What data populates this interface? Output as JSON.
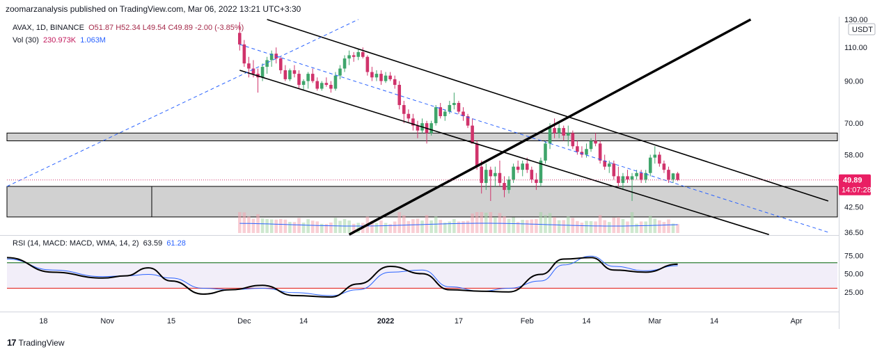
{
  "header": {
    "text": "zoomarzanalysis published on TradingView.com, Mar 06, 2022 13:21 UTC+3:30"
  },
  "legend": {
    "symbol": "AVAX",
    "interval": "1D",
    "exchange": "BINANCE",
    "open": "O51.87",
    "high": "H52.34",
    "low": "L49.54",
    "close": "C49.89",
    "change": "-2.00 (-3.85%)",
    "volume_label": "Vol (30)",
    "volume_value": "230.973K",
    "volume_ma": "1.063M",
    "rsi_label": "RSI (14, MACD: MACD, WMA, 14, 2)",
    "rsi_value": "63.59",
    "rsi_ma": "61.28"
  },
  "price_axis": {
    "currency": "USDT",
    "ticks": [
      "130.00",
      "110.00",
      "90.00",
      "70.00",
      "58.00",
      "42.50",
      "36.50"
    ],
    "last_price": "49.89",
    "countdown": "14:07:28"
  },
  "rsi_axis": {
    "ticks": [
      "75.00",
      "50.00",
      "25.00"
    ]
  },
  "time_axis": {
    "ticks": [
      "18",
      "Nov",
      "15",
      "Dec",
      "14",
      "2022",
      "17",
      "Feb",
      "14",
      "Mar",
      "14",
      "Apr"
    ]
  },
  "footer": {
    "brand": "TradingView"
  },
  "colors": {
    "up": "#26a69a",
    "down": "#ef5350",
    "upCandle": "#3fa56b",
    "downCandle": "#d0336b",
    "rsi": "#000000",
    "rsiMa": "#2962ff",
    "band": "#7e57c2"
  },
  "chart_data": {
    "type": "candlestick",
    "title": "AVAX / TetherUS, 1D, BINANCE",
    "price_scale": "log",
    "y_range": [
      36.5,
      130
    ],
    "x_range": [
      "2021-10-10",
      "2022-04-10"
    ],
    "candles": [
      {
        "t": "2021-11-30",
        "o": 120,
        "h": 128,
        "l": 108,
        "c": 112
      },
      {
        "t": "2021-12-01",
        "o": 112,
        "h": 115,
        "l": 98,
        "c": 100
      },
      {
        "t": "2021-12-02",
        "o": 100,
        "h": 104,
        "l": 92,
        "c": 97
      },
      {
        "t": "2021-12-03",
        "o": 97,
        "h": 102,
        "l": 92,
        "c": 94
      },
      {
        "t": "2021-12-04",
        "o": 94,
        "h": 97,
        "l": 84,
        "c": 92
      },
      {
        "t": "2021-12-05",
        "o": 92,
        "h": 100,
        "l": 90,
        "c": 98
      },
      {
        "t": "2021-12-06",
        "o": 98,
        "h": 104,
        "l": 94,
        "c": 102
      },
      {
        "t": "2021-12-07",
        "o": 102,
        "h": 108,
        "l": 98,
        "c": 106
      },
      {
        "t": "2021-12-08",
        "o": 106,
        "h": 110,
        "l": 100,
        "c": 103
      },
      {
        "t": "2021-12-09",
        "o": 103,
        "h": 104,
        "l": 94,
        "c": 96
      },
      {
        "t": "2021-12-10",
        "o": 96,
        "h": 99,
        "l": 90,
        "c": 91
      },
      {
        "t": "2021-12-11",
        "o": 91,
        "h": 97,
        "l": 90,
        "c": 96
      },
      {
        "t": "2021-12-12",
        "o": 96,
        "h": 99,
        "l": 92,
        "c": 94
      },
      {
        "t": "2021-12-13",
        "o": 94,
        "h": 96,
        "l": 86,
        "c": 88
      },
      {
        "t": "2021-12-14",
        "o": 88,
        "h": 91,
        "l": 85,
        "c": 90
      },
      {
        "t": "2021-12-15",
        "o": 90,
        "h": 95,
        "l": 86,
        "c": 94
      },
      {
        "t": "2021-12-16",
        "o": 94,
        "h": 97,
        "l": 89,
        "c": 90
      },
      {
        "t": "2021-12-17",
        "o": 90,
        "h": 92,
        "l": 85,
        "c": 86
      },
      {
        "t": "2021-12-18",
        "o": 86,
        "h": 90,
        "l": 85,
        "c": 89
      },
      {
        "t": "2021-12-19",
        "o": 89,
        "h": 92,
        "l": 87,
        "c": 88
      },
      {
        "t": "2021-12-20",
        "o": 88,
        "h": 90,
        "l": 84,
        "c": 86
      },
      {
        "t": "2021-12-21",
        "o": 86,
        "h": 95,
        "l": 85,
        "c": 93
      },
      {
        "t": "2021-12-22",
        "o": 93,
        "h": 99,
        "l": 91,
        "c": 97
      },
      {
        "t": "2021-12-23",
        "o": 97,
        "h": 105,
        "l": 95,
        "c": 103
      },
      {
        "t": "2021-12-24",
        "o": 103,
        "h": 108,
        "l": 99,
        "c": 105
      },
      {
        "t": "2021-12-25",
        "o": 105,
        "h": 107,
        "l": 101,
        "c": 104
      },
      {
        "t": "2021-12-26",
        "o": 104,
        "h": 109,
        "l": 102,
        "c": 107
      },
      {
        "t": "2021-12-27",
        "o": 107,
        "h": 110,
        "l": 103,
        "c": 104
      },
      {
        "t": "2021-12-28",
        "o": 104,
        "h": 105,
        "l": 93,
        "c": 95
      },
      {
        "t": "2021-12-29",
        "o": 95,
        "h": 98,
        "l": 90,
        "c": 92
      },
      {
        "t": "2021-12-30",
        "o": 92,
        "h": 96,
        "l": 90,
        "c": 94
      },
      {
        "t": "2021-12-31",
        "o": 94,
        "h": 96,
        "l": 88,
        "c": 90
      },
      {
        "t": "2022-01-01",
        "o": 90,
        "h": 95,
        "l": 89,
        "c": 93
      },
      {
        "t": "2022-01-02",
        "o": 93,
        "h": 95,
        "l": 90,
        "c": 91
      },
      {
        "t": "2022-01-03",
        "o": 91,
        "h": 93,
        "l": 86,
        "c": 88
      },
      {
        "t": "2022-01-04",
        "o": 88,
        "h": 90,
        "l": 76,
        "c": 78
      },
      {
        "t": "2022-01-05",
        "o": 78,
        "h": 80,
        "l": 70,
        "c": 74
      },
      {
        "t": "2022-01-06",
        "o": 74,
        "h": 76,
        "l": 70,
        "c": 72
      },
      {
        "t": "2022-01-07",
        "o": 72,
        "h": 74,
        "l": 67,
        "c": 69
      },
      {
        "t": "2022-01-08",
        "o": 69,
        "h": 71,
        "l": 64,
        "c": 67
      },
      {
        "t": "2022-01-09",
        "o": 67,
        "h": 72,
        "l": 66,
        "c": 70
      },
      {
        "t": "2022-01-10",
        "o": 70,
        "h": 71,
        "l": 62,
        "c": 66
      },
      {
        "t": "2022-01-11",
        "o": 66,
        "h": 71,
        "l": 65,
        "c": 70
      },
      {
        "t": "2022-01-12",
        "o": 70,
        "h": 78,
        "l": 69,
        "c": 77
      },
      {
        "t": "2022-01-13",
        "o": 77,
        "h": 79,
        "l": 72,
        "c": 73
      },
      {
        "t": "2022-01-14",
        "o": 73,
        "h": 76,
        "l": 71,
        "c": 75
      },
      {
        "t": "2022-01-15",
        "o": 75,
        "h": 80,
        "l": 74,
        "c": 78
      },
      {
        "t": "2022-01-16",
        "o": 78,
        "h": 84,
        "l": 76,
        "c": 79
      },
      {
        "t": "2022-01-17",
        "o": 79,
        "h": 80,
        "l": 74,
        "c": 75
      },
      {
        "t": "2022-01-18",
        "o": 75,
        "h": 77,
        "l": 71,
        "c": 73
      },
      {
        "t": "2022-01-19",
        "o": 73,
        "h": 74,
        "l": 68,
        "c": 69
      },
      {
        "t": "2022-01-20",
        "o": 69,
        "h": 72,
        "l": 62,
        "c": 62
      },
      {
        "t": "2022-01-21",
        "o": 62,
        "h": 63,
        "l": 53,
        "c": 54
      },
      {
        "t": "2022-01-22",
        "o": 54,
        "h": 56,
        "l": 46,
        "c": 49
      },
      {
        "t": "2022-01-23",
        "o": 49,
        "h": 55,
        "l": 47,
        "c": 53
      },
      {
        "t": "2022-01-24",
        "o": 53,
        "h": 54,
        "l": 44,
        "c": 51
      },
      {
        "t": "2022-01-25",
        "o": 51,
        "h": 54,
        "l": 48,
        "c": 52
      },
      {
        "t": "2022-01-26",
        "o": 52,
        "h": 56,
        "l": 48,
        "c": 49
      },
      {
        "t": "2022-01-27",
        "o": 49,
        "h": 51,
        "l": 45,
        "c": 47
      },
      {
        "t": "2022-01-28",
        "o": 47,
        "h": 51,
        "l": 46,
        "c": 50
      },
      {
        "t": "2022-01-29",
        "o": 50,
        "h": 55,
        "l": 49,
        "c": 54
      },
      {
        "t": "2022-01-30",
        "o": 54,
        "h": 56,
        "l": 52,
        "c": 53
      },
      {
        "t": "2022-01-31",
        "o": 53,
        "h": 56,
        "l": 51,
        "c": 55
      },
      {
        "t": "2022-02-01",
        "o": 55,
        "h": 57,
        "l": 52,
        "c": 53
      },
      {
        "t": "2022-02-02",
        "o": 53,
        "h": 54,
        "l": 49,
        "c": 50
      },
      {
        "t": "2022-02-03",
        "o": 50,
        "h": 52,
        "l": 47,
        "c": 49
      },
      {
        "t": "2022-02-04",
        "o": 49,
        "h": 57,
        "l": 48,
        "c": 56
      },
      {
        "t": "2022-02-05",
        "o": 56,
        "h": 63,
        "l": 55,
        "c": 62
      },
      {
        "t": "2022-02-06",
        "o": 62,
        "h": 70,
        "l": 60,
        "c": 68
      },
      {
        "t": "2022-02-07",
        "o": 68,
        "h": 72,
        "l": 64,
        "c": 66
      },
      {
        "t": "2022-02-08",
        "o": 66,
        "h": 70,
        "l": 64,
        "c": 68
      },
      {
        "t": "2022-02-09",
        "o": 68,
        "h": 69,
        "l": 63,
        "c": 65
      },
      {
        "t": "2022-02-10",
        "o": 65,
        "h": 69,
        "l": 61,
        "c": 66
      },
      {
        "t": "2022-02-11",
        "o": 66,
        "h": 67,
        "l": 60,
        "c": 61
      },
      {
        "t": "2022-02-12",
        "o": 61,
        "h": 63,
        "l": 58,
        "c": 59
      },
      {
        "t": "2022-02-13",
        "o": 59,
        "h": 61,
        "l": 57,
        "c": 58
      },
      {
        "t": "2022-02-14",
        "o": 58,
        "h": 62,
        "l": 57,
        "c": 60
      },
      {
        "t": "2022-02-15",
        "o": 60,
        "h": 64,
        "l": 59,
        "c": 63
      },
      {
        "t": "2022-02-16",
        "o": 63,
        "h": 66,
        "l": 61,
        "c": 62
      },
      {
        "t": "2022-02-17",
        "o": 62,
        "h": 63,
        "l": 55,
        "c": 56
      },
      {
        "t": "2022-02-18",
        "o": 56,
        "h": 58,
        "l": 53,
        "c": 54
      },
      {
        "t": "2022-02-19",
        "o": 54,
        "h": 56,
        "l": 52,
        "c": 55
      },
      {
        "t": "2022-02-20",
        "o": 55,
        "h": 56,
        "l": 50,
        "c": 51
      },
      {
        "t": "2022-02-21",
        "o": 51,
        "h": 54,
        "l": 48,
        "c": 49
      },
      {
        "t": "2022-02-22",
        "o": 49,
        "h": 52,
        "l": 47,
        "c": 51
      },
      {
        "t": "2022-02-23",
        "o": 51,
        "h": 53,
        "l": 49,
        "c": 50
      },
      {
        "t": "2022-02-24",
        "o": 50,
        "h": 52,
        "l": 44,
        "c": 51
      },
      {
        "t": "2022-02-25",
        "o": 51,
        "h": 53,
        "l": 50,
        "c": 52
      },
      {
        "t": "2022-02-26",
        "o": 52,
        "h": 53,
        "l": 49,
        "c": 50
      },
      {
        "t": "2022-02-27",
        "o": 50,
        "h": 53,
        "l": 49,
        "c": 52
      },
      {
        "t": "2022-02-28",
        "o": 52,
        "h": 58,
        "l": 51,
        "c": 57
      },
      {
        "t": "2022-03-01",
        "o": 57,
        "h": 61,
        "l": 55,
        "c": 58
      },
      {
        "t": "2022-03-02",
        "o": 58,
        "h": 59,
        "l": 54,
        "c": 55
      },
      {
        "t": "2022-03-03",
        "o": 55,
        "h": 56,
        "l": 52,
        "c": 53
      },
      {
        "t": "2022-03-04",
        "o": 53,
        "h": 54,
        "l": 49,
        "c": 50
      },
      {
        "t": "2022-03-05",
        "o": 50,
        "h": 52,
        "l": 49,
        "c": 51.87
      },
      {
        "t": "2022-03-06",
        "o": 51.87,
        "h": 52.34,
        "l": 49.54,
        "c": 49.89
      }
    ],
    "zones": [
      {
        "name": "resistance-zone",
        "from": 63,
        "to": 66
      },
      {
        "name": "support-zone",
        "from": 40,
        "to": 48
      }
    ],
    "trendlines": [
      {
        "name": "channel-upper",
        "from": {
          "t": "2021-12-06",
          "p": 130
        },
        "to": {
          "t": "2022-04-08",
          "p": 44
        }
      },
      {
        "name": "channel-lower",
        "from": {
          "t": "2021-11-30",
          "p": 96
        },
        "to": {
          "t": "2022-03-26",
          "p": 36
        }
      },
      {
        "name": "rising-line",
        "from": {
          "t": "2021-12-24",
          "p": 36
        },
        "to": {
          "t": "2022-03-22",
          "p": 130
        }
      },
      {
        "name": "dashed-mid",
        "from": {
          "t": "2021-11-30",
          "p": 112
        },
        "to": {
          "t": "2022-04-08",
          "p": 36.5
        }
      },
      {
        "name": "dashed-rising",
        "from": {
          "t": "2021-10-10",
          "p": 48
        },
        "to": {
          "t": "2021-12-26",
          "p": 130
        }
      }
    ],
    "rsi": {
      "y_range": [
        0,
        100
      ],
      "upper_band": 65,
      "lower_band": 30,
      "t": [
        "2021-10-10",
        "2021-10-20",
        "2021-10-31",
        "2021-11-05",
        "2021-11-10",
        "2021-11-15",
        "2021-11-22",
        "2021-11-28",
        "2021-12-05",
        "2021-12-12",
        "2021-12-20",
        "2021-12-26",
        "2022-01-02",
        "2022-01-09",
        "2022-01-15",
        "2022-01-22",
        "2022-01-28",
        "2022-02-04",
        "2022-02-09",
        "2022-02-15",
        "2022-02-20",
        "2022-02-27",
        "2022-03-06"
      ],
      "values": [
        72,
        52,
        44,
        47,
        58,
        40,
        22,
        28,
        34,
        20,
        18,
        36,
        60,
        50,
        28,
        26,
        25,
        49,
        70,
        72,
        55,
        52,
        63
      ],
      "ma": [
        70,
        55,
        46,
        47,
        49,
        44,
        30,
        28,
        30,
        24,
        20,
        28,
        52,
        55,
        32,
        26,
        30,
        40,
        62,
        74,
        60,
        54,
        61
      ]
    }
  }
}
